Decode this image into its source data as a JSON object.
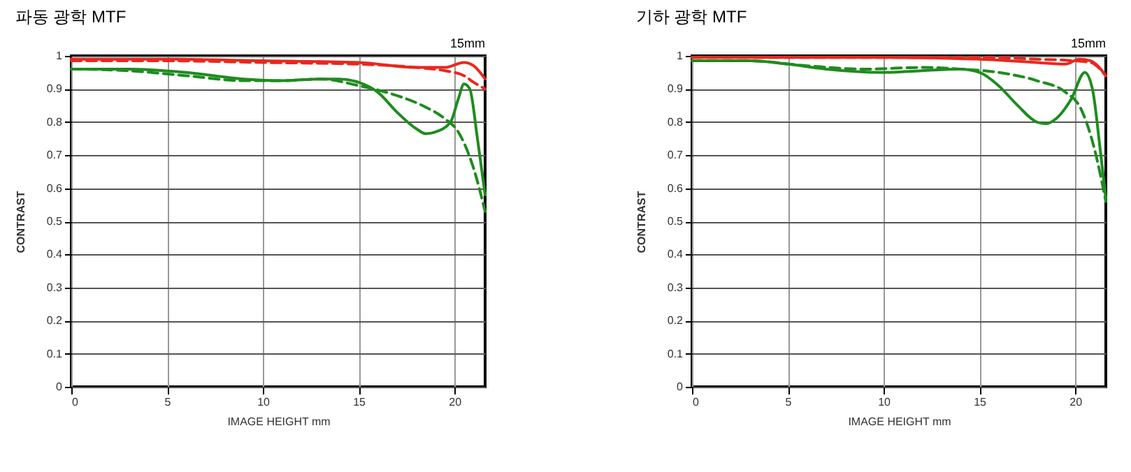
{
  "chart_data": [
    {
      "type": "line",
      "title": "파동 광학 MTF",
      "xlabel": "IMAGE HEIGHT   mm",
      "ylabel": "CONTRAST",
      "annotations": [
        "15mm"
      ],
      "xlim": [
        0,
        21.6
      ],
      "ylim": [
        0,
        1
      ],
      "xticks": [
        0,
        5,
        10,
        15,
        20
      ],
      "yticks": [
        0,
        0.1,
        0.2,
        0.3,
        0.4,
        0.5,
        0.6,
        0.7,
        0.8,
        0.9,
        1
      ],
      "grid": true,
      "series": [
        {
          "color": "#e8281e",
          "line_style": "solid",
          "x": [
            0,
            5,
            10,
            15,
            18,
            19.5,
            20.5,
            21,
            21.6
          ],
          "values": [
            0.99,
            0.99,
            0.985,
            0.98,
            0.965,
            0.965,
            0.98,
            0.97,
            0.93
          ]
        },
        {
          "color": "#e8281e",
          "line_style": "dashed",
          "x": [
            0,
            5,
            10,
            15,
            18,
            19.5,
            20.5,
            21,
            21.6
          ],
          "values": [
            0.985,
            0.985,
            0.98,
            0.975,
            0.965,
            0.955,
            0.94,
            0.92,
            0.9
          ]
        },
        {
          "color": "#1e8c1e",
          "line_style": "solid",
          "x": [
            0,
            3,
            6,
            9,
            11,
            13,
            14,
            15,
            16,
            17,
            18,
            18.5,
            19,
            19.8,
            20.2,
            20.5,
            20.8,
            21.2,
            21.6
          ],
          "values": [
            0.96,
            0.96,
            0.95,
            0.93,
            0.925,
            0.93,
            0.93,
            0.92,
            0.89,
            0.83,
            0.78,
            0.765,
            0.77,
            0.8,
            0.87,
            0.915,
            0.9,
            0.75,
            0.58
          ]
        },
        {
          "color": "#1e8c1e",
          "line_style": "dashed",
          "x": [
            0,
            3,
            6,
            9,
            11,
            13,
            15,
            17,
            18.5,
            19.5,
            20.2,
            21,
            21.6
          ],
          "values": [
            0.96,
            0.955,
            0.94,
            0.925,
            0.925,
            0.93,
            0.91,
            0.88,
            0.845,
            0.81,
            0.77,
            0.66,
            0.53
          ]
        }
      ]
    },
    {
      "type": "line",
      "title": "기하 광학 MTF",
      "xlabel": "IMAGE HEIGHT   mm",
      "ylabel": "CONTRAST",
      "annotations": [
        "15mm"
      ],
      "xlim": [
        0,
        21.6
      ],
      "ylim": [
        0,
        1
      ],
      "xticks": [
        0,
        5,
        10,
        15,
        20
      ],
      "yticks": [
        0,
        0.1,
        0.2,
        0.3,
        0.4,
        0.5,
        0.6,
        0.7,
        0.8,
        0.9,
        1
      ],
      "grid": true,
      "series": [
        {
          "color": "#e8281e",
          "line_style": "solid",
          "x": [
            0,
            10,
            15,
            18,
            19.5,
            20.2,
            20.8,
            21.6
          ],
          "values": [
            0.995,
            0.995,
            0.99,
            0.98,
            0.975,
            0.99,
            0.985,
            0.94
          ]
        },
        {
          "color": "#e8281e",
          "line_style": "dashed",
          "x": [
            0,
            10,
            15,
            18,
            20,
            20.8,
            21.6
          ],
          "values": [
            0.995,
            0.995,
            0.995,
            0.99,
            0.985,
            0.98,
            0.94
          ]
        },
        {
          "color": "#1e8c1e",
          "line_style": "solid",
          "x": [
            0,
            3,
            5,
            7,
            10,
            12,
            14,
            15,
            16,
            17,
            18,
            18.5,
            19,
            19.8,
            20.5,
            20.9,
            21.3,
            21.6
          ],
          "values": [
            0.985,
            0.985,
            0.975,
            0.96,
            0.95,
            0.955,
            0.96,
            0.95,
            0.91,
            0.85,
            0.8,
            0.795,
            0.81,
            0.87,
            0.95,
            0.9,
            0.72,
            0.57
          ]
        },
        {
          "color": "#1e8c1e",
          "line_style": "dashed",
          "x": [
            0,
            3,
            6,
            9,
            12,
            14,
            16,
            18,
            19.5,
            20.3,
            21,
            21.6
          ],
          "values": [
            0.985,
            0.985,
            0.97,
            0.96,
            0.965,
            0.96,
            0.95,
            0.925,
            0.89,
            0.84,
            0.72,
            0.56
          ]
        }
      ]
    }
  ]
}
